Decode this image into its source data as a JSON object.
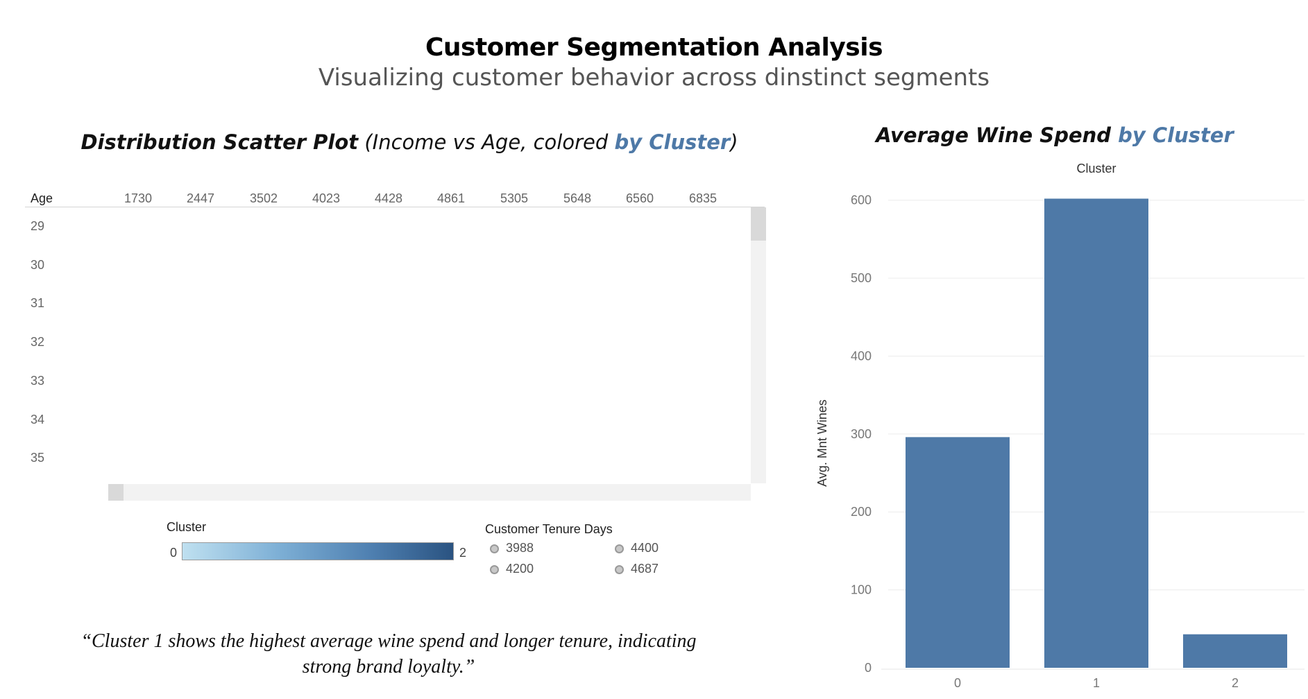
{
  "dashboard": {
    "title": "Customer Segmentation Analysis",
    "subtitle": "Visualizing customer behavior across dinstinct segments"
  },
  "scatter": {
    "title_bold": "Distribution Scatter Plot",
    "title_light_open": " (Income vs Age, colored ",
    "title_accent": "by Cluster",
    "title_light_close": ")",
    "row_header": "Age",
    "column_headers": [
      "1730",
      "2447",
      "3502",
      "4023",
      "4428",
      "4861",
      "5305",
      "5648",
      "6560",
      "6835"
    ],
    "row_labels": [
      "29",
      "30",
      "31",
      "32",
      "33",
      "34",
      "35"
    ]
  },
  "legends": {
    "cluster": {
      "title": "Cluster",
      "min": "0",
      "max": "2"
    },
    "tenure": {
      "title": "Customer Tenure Days",
      "items": [
        "3988",
        "4400",
        "4200",
        "4687"
      ]
    }
  },
  "quote": "“Cluster 1 shows the highest average wine spend and longer tenure, indicating strong brand loyalty.”",
  "bar_title": {
    "bold": "Average Wine Spend ",
    "accent": "by Cluster"
  },
  "colors": {
    "bar": "#4e79a7",
    "accent": "#4e79a7",
    "gridline": "#ececec"
  },
  "chart_data": {
    "type": "bar",
    "title": "Average Wine Spend by Cluster",
    "column_header": "Cluster",
    "categories": [
      "0",
      "1",
      "2"
    ],
    "values": [
      296,
      602,
      43
    ],
    "xlabel": "",
    "ylabel": "Avg. Mnt Wines",
    "ylim": [
      0,
      630
    ],
    "yticks": [
      0,
      100,
      200,
      300,
      400,
      500,
      600
    ],
    "grid": true
  }
}
